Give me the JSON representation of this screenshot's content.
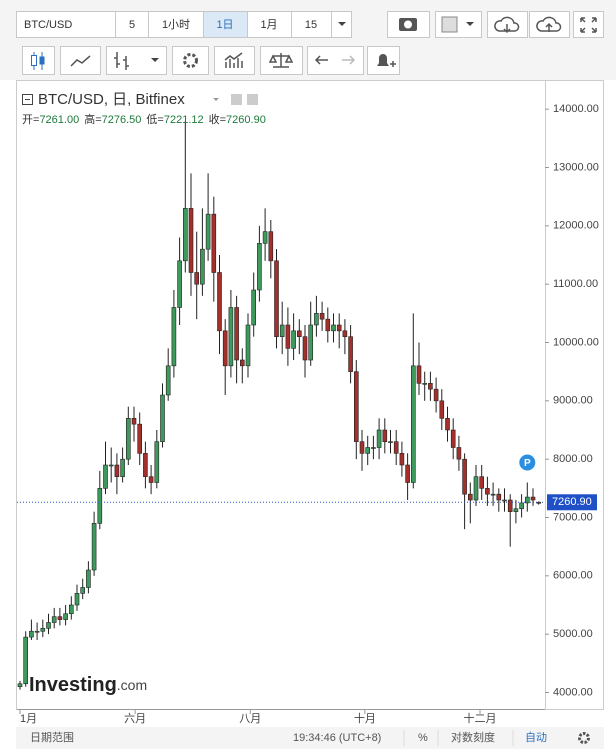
{
  "toolbar": {
    "symbol": "BTC/USD",
    "intervals": [
      "5",
      "1小时",
      "1日",
      "1月"
    ],
    "active_interval": "1日",
    "count": "15"
  },
  "legend": {
    "title": "BTC/USD, 日, Bitfinex",
    "ohlc": [
      {
        "key": "开=",
        "value": "7261.00"
      },
      {
        "key": "高=",
        "value": "7276.50"
      },
      {
        "key": "低=",
        "value": "7221.12"
      },
      {
        "key": "收=",
        "value": "7260.90"
      }
    ]
  },
  "logo": {
    "brand": "Investing",
    "suffix": ".com"
  },
  "badge": "P",
  "footer": {
    "range": "日期范围",
    "time": "19:34:46 (UTC+8)",
    "percent": "%",
    "log": "对数刻度",
    "auto": "自动"
  },
  "chart_data": {
    "type": "candlestick",
    "categories": [
      null,
      null,
      null,
      null,
      null,
      null,
      null,
      null,
      null,
      null,
      null,
      null,
      null,
      null,
      null,
      null,
      null,
      null,
      null,
      null,
      null,
      null,
      null,
      null,
      null,
      null,
      null,
      null,
      null,
      null,
      null,
      null,
      null,
      null,
      null,
      null,
      null,
      null,
      null,
      null,
      null,
      null,
      null,
      null,
      null,
      null,
      null,
      null,
      null,
      null,
      null,
      null,
      null,
      null,
      null,
      null,
      null,
      null,
      null,
      null,
      null,
      null,
      null,
      null,
      null,
      null,
      null,
      null,
      null,
      null,
      null,
      null,
      null,
      null,
      null,
      null,
      null,
      null,
      null,
      null,
      null,
      null,
      null,
      null,
      null,
      null,
      null,
      null,
      null,
      null,
      null,
      null
    ],
    "open": [
      4100,
      4150,
      4950,
      5050,
      5050,
      5100,
      5200,
      5300,
      5250,
      5350,
      5500,
      5700,
      5800,
      6100,
      6900,
      7500,
      7900,
      7900,
      7700,
      8000,
      8700,
      8600,
      8100,
      7700,
      7600,
      8300,
      9100,
      9600,
      10600,
      11400,
      12300,
      11200,
      11000,
      11600,
      12200,
      11200,
      10200,
      9600,
      10600,
      9700,
      9600,
      10300,
      10900,
      11700,
      11900,
      11400,
      10100,
      10300,
      9900,
      10200,
      10100,
      9700,
      10300,
      10500,
      10400,
      10200,
      10300,
      10200,
      10100,
      9500,
      8300,
      8100,
      8200,
      8200,
      8500,
      8300,
      8300,
      8100,
      7900,
      7600,
      9600,
      9300,
      9300,
      9200,
      9000,
      8700,
      8500,
      8200,
      8000,
      7400,
      7300,
      7700,
      7500,
      7400,
      7400,
      7300,
      7300,
      7100,
      7150,
      7250,
      7350,
      7261
    ],
    "high": [
      4200,
      5050,
      5250,
      5200,
      5250,
      5350,
      5450,
      5450,
      5500,
      5650,
      5850,
      5950,
      6250,
      7100,
      7800,
      8300,
      8200,
      8100,
      8200,
      8900,
      8900,
      8800,
      8300,
      7900,
      8500,
      9300,
      9900,
      10900,
      11800,
      13800,
      12900,
      11900,
      12300,
      12900,
      12500,
      11500,
      10400,
      10900,
      10800,
      9900,
      10500,
      11200,
      12000,
      12300,
      12100,
      11600,
      10700,
      10600,
      10500,
      10400,
      10300,
      10700,
      10800,
      10700,
      10600,
      10500,
      10500,
      10400,
      10300,
      9700,
      8500,
      8400,
      8400,
      8700,
      8700,
      8500,
      8500,
      8300,
      8100,
      10500,
      10000,
      9500,
      9500,
      9400,
      9200,
      8900,
      8700,
      8400,
      8100,
      7600,
      7900,
      7900,
      7700,
      7600,
      7500,
      7500,
      7400,
      7300,
      7400,
      7600,
      7500,
      7276.5
    ],
    "low": [
      4050,
      4100,
      4900,
      4900,
      4950,
      5000,
      5100,
      5150,
      5150,
      5250,
      5400,
      5600,
      5700,
      6000,
      6800,
      7400,
      7600,
      7400,
      7600,
      7900,
      8300,
      7900,
      7500,
      7400,
      7500,
      8200,
      9000,
      9400,
      10300,
      11200,
      10800,
      10400,
      10800,
      11400,
      10700,
      9800,
      9100,
      9400,
      9300,
      9300,
      9400,
      10100,
      10700,
      11400,
      11100,
      9900,
      9800,
      9600,
      9700,
      9800,
      9400,
      9600,
      10100,
      10200,
      10000,
      10000,
      9900,
      9800,
      9300,
      8000,
      7800,
      7900,
      8000,
      8000,
      8100,
      8100,
      7900,
      7700,
      7300,
      7500,
      9100,
      9000,
      9000,
      8800,
      8500,
      8300,
      8000,
      7800,
      6800,
      6900,
      7200,
      7300,
      7200,
      7200,
      7100,
      7100,
      6500,
      6900,
      7000,
      7100,
      7200,
      7221.12
    ],
    "close": [
      4150,
      4950,
      5050,
      5050,
      5100,
      5200,
      5300,
      5250,
      5350,
      5500,
      5700,
      5800,
      6100,
      6900,
      7500,
      7900,
      7900,
      7700,
      8000,
      8700,
      8600,
      8100,
      7700,
      7600,
      8300,
      9100,
      9600,
      10600,
      11400,
      12300,
      11200,
      11000,
      11600,
      12200,
      11200,
      10200,
      9600,
      10600,
      9700,
      9600,
      10300,
      10900,
      11700,
      11900,
      11400,
      10100,
      10300,
      9900,
      10200,
      10100,
      9700,
      10300,
      10500,
      10400,
      10200,
      10300,
      10200,
      10100,
      9500,
      8300,
      8100,
      8200,
      8200,
      8500,
      8300,
      8300,
      8100,
      7900,
      7600,
      9600,
      9300,
      9300,
      9200,
      9000,
      8700,
      8500,
      8200,
      8000,
      7400,
      7300,
      7700,
      7500,
      7400,
      7400,
      7300,
      7300,
      7100,
      7150,
      7250,
      7350,
      7300,
      7260.9
    ],
    "up_color": "#3e9a5c",
    "down_color": "#a4302c",
    "xticks": [
      {
        "value": 0,
        "label": "1月"
      },
      {
        "value": 20.2,
        "label": "六月"
      },
      {
        "value": 40.4,
        "label": "八月"
      },
      {
        "value": 60.5,
        "label": "十月"
      },
      {
        "value": 80.7,
        "label": "十二月"
      }
    ],
    "ylim": [
      3700,
      14500
    ],
    "yticks": [
      {
        "value": 4000,
        "label": "4000.00"
      },
      {
        "value": 5000,
        "label": "5000.00"
      },
      {
        "value": 6000,
        "label": "6000.00"
      },
      {
        "value": 7000,
        "label": "7000.00"
      },
      {
        "value": 8000,
        "label": "8000.00"
      },
      {
        "value": 9000,
        "label": "9000.00"
      },
      {
        "value": 10000,
        "label": "10000.00"
      },
      {
        "value": 11000,
        "label": "11000.00"
      },
      {
        "value": 12000,
        "label": "12000.00"
      },
      {
        "value": 13000,
        "label": "13000.00"
      },
      {
        "value": 14000,
        "label": "14000.00"
      }
    ],
    "last_price": {
      "value": 7260.9,
      "label": "7260.90"
    },
    "last_color": "#2050c8"
  }
}
